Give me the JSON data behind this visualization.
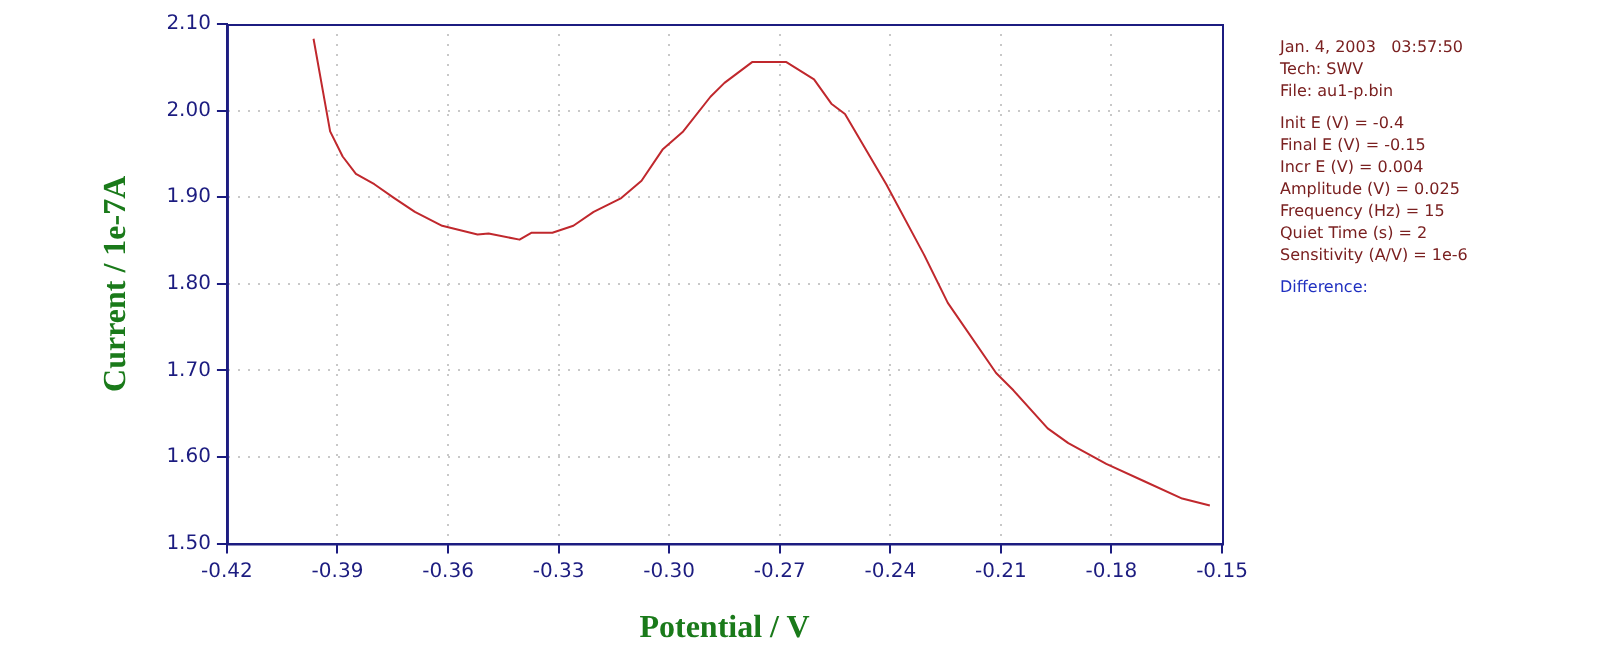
{
  "chart_data": {
    "type": "line",
    "xlabel": "Potential / V",
    "ylabel": "Current / 1e-7A",
    "x": [
      -0.3965,
      -0.392,
      -0.3886,
      -0.385,
      -0.38,
      -0.3746,
      -0.369,
      -0.3616,
      -0.352,
      -0.349,
      -0.3406,
      -0.3373,
      -0.3317,
      -0.326,
      -0.3205,
      -0.313,
      -0.3075,
      -0.3018,
      -0.2962,
      -0.2888,
      -0.285,
      -0.2775,
      -0.2682,
      -0.2607,
      -0.256,
      -0.2523,
      -0.2411,
      -0.2309,
      -0.2244,
      -0.2113,
      -0.2066,
      -0.1973,
      -0.1917,
      -0.1814,
      -0.1711,
      -0.1608,
      -0.1533
    ],
    "series": [
      {
        "color": "#c0282d",
        "values": [
          2.083,
          1.976,
          1.947,
          1.927,
          1.915,
          1.899,
          1.883,
          1.867,
          1.857,
          1.858,
          1.851,
          1.859,
          1.859,
          1.867,
          1.883,
          1.899,
          1.919,
          1.955,
          1.976,
          2.016,
          2.032,
          2.056,
          2.056,
          2.036,
          2.008,
          1.996,
          1.915,
          1.834,
          1.778,
          1.697,
          1.677,
          1.633,
          1.616,
          1.592,
          1.572,
          1.552,
          1.544
        ]
      }
    ],
    "xlim": [
      -0.42,
      -0.15
    ],
    "xticks": [
      -0.42,
      -0.39,
      -0.36,
      -0.33,
      {
        "value": -0.3,
        "label": "-0.30"
      },
      -0.27,
      -0.24,
      -0.21,
      -0.18,
      -0.15
    ],
    "ylim": [
      1.5,
      2.1
    ],
    "yticks": [
      {
        "value": 1.5,
        "label": "1.50"
      },
      {
        "value": 1.6,
        "label": "1.60"
      },
      {
        "value": 1.7,
        "label": "1.70"
      },
      {
        "value": 1.8,
        "label": "1.80"
      },
      {
        "value": 1.9,
        "label": "1.90"
      },
      {
        "value": 2.0,
        "label": "2.00"
      },
      {
        "value": 2.1,
        "label": "2.10"
      }
    ],
    "grid": true,
    "legend": false,
    "marker": "none",
    "line_style": "solid",
    "annotations": [
      "Jan. 4, 2003   03:57:50",
      "Tech: SWV",
      "File: au1-p.bin",
      "Init E (V) = -0.4",
      "Final E (V) = -0.15",
      "Incr E (V) = 0.004",
      "Amplitude (V) = 0.025",
      "Frequency (Hz) = 15",
      "Quiet Time (s) = 2",
      "Sensitivity (A/V) = 1e-6",
      "Difference:"
    ]
  }
}
